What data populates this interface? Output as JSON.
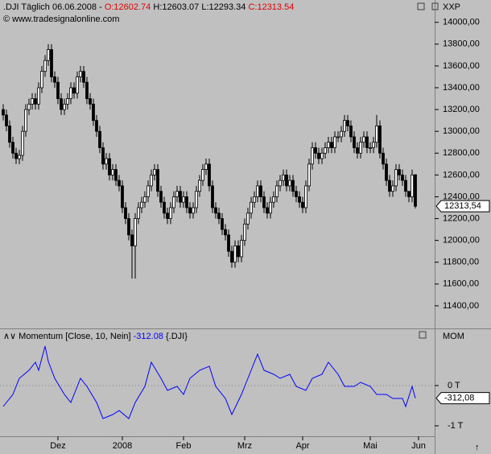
{
  "header": {
    "symbol": ".DJI",
    "period": "Täglich",
    "date": "06.06.2008",
    "dash": "-",
    "copyright": "© www.tradesignalonline.com",
    "corner": "XXP"
  },
  "chart_data": [
    {
      "type": "candlestick",
      "ohlc_labels": [
        "O:12602.74",
        "H:12603.07",
        "L:12293.34",
        "C:12313.54"
      ],
      "last_label": "12313,54",
      "xlim": [
        -1,
        134
      ],
      "xticks": [
        {
          "value": 17,
          "label": "Dez"
        },
        {
          "value": 37,
          "label": "2008"
        },
        {
          "value": 56,
          "label": "Feb"
        },
        {
          "value": 75,
          "label": "Mrz"
        },
        {
          "value": 93,
          "label": "Apr"
        },
        {
          "value": 114,
          "label": "Mai"
        },
        {
          "value": 129,
          "label": "Jun"
        }
      ],
      "ylim": [
        11200,
        14190
      ],
      "yticks": [
        {
          "value": 11400,
          "label": "11400,00"
        },
        {
          "value": 11600,
          "label": "11600,00"
        },
        {
          "value": 11800,
          "label": "11800,00"
        },
        {
          "value": 12000,
          "label": "12000,00"
        },
        {
          "value": 12200,
          "label": "12200,00"
        },
        {
          "value": 12400,
          "label": "12400,00"
        },
        {
          "value": 12600,
          "label": "12600,00"
        },
        {
          "value": 12800,
          "label": "12800,00"
        },
        {
          "value": 13000,
          "label": "13000,00"
        },
        {
          "value": 13200,
          "label": "13200,00"
        },
        {
          "value": 13400,
          "label": "13400,00"
        },
        {
          "value": 13600,
          "label": "13600,00"
        },
        {
          "value": 13800,
          "label": "13800,00"
        },
        {
          "value": 14000,
          "label": "14000,00"
        }
      ],
      "up_color": "#ffffff",
      "down_color": "#000000",
      "open": [
        13200,
        13150,
        13050,
        12900,
        12800,
        12750,
        12780,
        13000,
        13200,
        13250,
        13300,
        13250,
        13400,
        13550,
        13650,
        13750,
        13500,
        13450,
        13300,
        13200,
        13250,
        13300,
        13400,
        13350,
        13500,
        13550,
        13450,
        13300,
        13250,
        13100,
        13000,
        12850,
        12700,
        12750,
        12600,
        12650,
        12550,
        12500,
        12300,
        12200,
        12050,
        11950,
        12200,
        12300,
        12350,
        12400,
        12500,
        12600,
        12650,
        12450,
        12350,
        12250,
        12200,
        12300,
        12400,
        12450,
        12350,
        12400,
        12300,
        12250,
        12300,
        12450,
        12550,
        12650,
        12700,
        12500,
        12300,
        12250,
        12200,
        12100,
        12050,
        11900,
        11800,
        11950,
        11850,
        12000,
        12150,
        12250,
        12350,
        12400,
        12500,
        12400,
        12300,
        12250,
        12350,
        12400,
        12500,
        12550,
        12600,
        12500,
        12550,
        12450,
        12400,
        12350,
        12300,
        12500,
        12700,
        12850,
        12800,
        12750,
        12800,
        12850,
        12900,
        12850,
        12950,
        12950,
        13000,
        13100,
        13050,
        12950,
        12850,
        12800,
        12900,
        12950,
        12850,
        12850,
        12900,
        13050,
        12800,
        12700,
        12550,
        12450,
        12500,
        12650,
        12600,
        12550,
        12450,
        12400,
        12602.74
      ],
      "high": [
        13250,
        13200,
        13100,
        12950,
        12850,
        12830,
        13050,
        13250,
        13300,
        13350,
        13350,
        13450,
        13600,
        13700,
        13800,
        13800,
        13550,
        13500,
        13350,
        13300,
        13350,
        13450,
        13450,
        13550,
        13600,
        13600,
        13500,
        13350,
        13300,
        13150,
        13050,
        12900,
        12800,
        12800,
        12700,
        12700,
        12600,
        12550,
        12350,
        12250,
        12100,
        12250,
        12350,
        12400,
        12450,
        12550,
        12650,
        12700,
        12700,
        12500,
        12400,
        12300,
        12350,
        12450,
        12500,
        12500,
        12450,
        12450,
        12350,
        12350,
        12500,
        12600,
        12700,
        12750,
        12750,
        12550,
        12350,
        12300,
        12250,
        12150,
        12100,
        11950,
        12000,
        12000,
        12050,
        12200,
        12300,
        12400,
        12450,
        12550,
        12550,
        12450,
        12350,
        12400,
        12450,
        12550,
        12600,
        12650,
        12650,
        12600,
        12600,
        12500,
        12450,
        12400,
        12550,
        12750,
        12900,
        12900,
        12850,
        12850,
        12900,
        12950,
        12950,
        13000,
        13000,
        13050,
        13150,
        13150,
        13100,
        13000,
        12900,
        12950,
        13000,
        13000,
        12900,
        12950,
        13150,
        13100,
        12850,
        12750,
        12600,
        12550,
        12700,
        12700,
        12650,
        12600,
        12450,
        12650,
        12603.07
      ],
      "low": [
        13100,
        13000,
        12850,
        12750,
        12700,
        12700,
        12730,
        12950,
        13150,
        13200,
        13200,
        13200,
        13350,
        13500,
        13600,
        13450,
        13400,
        13250,
        13150,
        13150,
        13200,
        13250,
        13300,
        13300,
        13450,
        13400,
        13250,
        13200,
        13050,
        12950,
        12800,
        12650,
        12650,
        12550,
        12550,
        12500,
        12450,
        12250,
        12150,
        12000,
        11650,
        11650,
        12150,
        12250,
        12300,
        12350,
        12450,
        12550,
        12400,
        12300,
        12200,
        12150,
        12150,
        12250,
        12350,
        12300,
        12300,
        12250,
        12200,
        12200,
        12250,
        12400,
        12500,
        12600,
        12450,
        12250,
        12200,
        12150,
        12050,
        12000,
        11850,
        11750,
        11750,
        11800,
        11800,
        11950,
        12100,
        12200,
        12300,
        12350,
        12350,
        12250,
        12200,
        12200,
        12300,
        12350,
        12450,
        12500,
        12450,
        12450,
        12400,
        12350,
        12300,
        12250,
        12250,
        12450,
        12650,
        12750,
        12700,
        12700,
        12750,
        12800,
        12800,
        12800,
        12900,
        12900,
        12950,
        13000,
        12900,
        12800,
        12750,
        12750,
        12850,
        12800,
        12800,
        12800,
        12850,
        12750,
        12650,
        12500,
        12400,
        12400,
        12450,
        12550,
        12500,
        12400,
        12350,
        12350,
        12293.34
      ],
      "close": [
        13150,
        13050,
        12900,
        12800,
        12750,
        12780,
        13000,
        13200,
        13250,
        13300,
        13250,
        13400,
        13550,
        13650,
        13750,
        13500,
        13450,
        13300,
        13200,
        13250,
        13300,
        13400,
        13350,
        13500,
        13550,
        13450,
        13300,
        13250,
        13100,
        13000,
        12850,
        12700,
        12750,
        12600,
        12650,
        12550,
        12500,
        12300,
        12200,
        12050,
        11950,
        12200,
        12300,
        12350,
        12400,
        12500,
        12600,
        12650,
        12450,
        12350,
        12250,
        12200,
        12300,
        12400,
        12450,
        12350,
        12400,
        12300,
        12250,
        12300,
        12450,
        12550,
        12650,
        12700,
        12500,
        12300,
        12250,
        12200,
        12100,
        12050,
        11900,
        11800,
        11950,
        11850,
        12000,
        12150,
        12250,
        12350,
        12400,
        12500,
        12400,
        12300,
        12250,
        12350,
        12400,
        12500,
        12550,
        12600,
        12500,
        12550,
        12450,
        12400,
        12350,
        12300,
        12500,
        12700,
        12850,
        12800,
        12750,
        12800,
        12850,
        12900,
        12850,
        12950,
        12950,
        13000,
        13100,
        13050,
        12950,
        12850,
        12800,
        12900,
        12950,
        12850,
        12850,
        12900,
        13050,
        12800,
        12700,
        12550,
        12450,
        12500,
        12650,
        12600,
        12550,
        12450,
        12400,
        12600,
        12313.54
      ]
    },
    {
      "type": "line",
      "title": "Momentum [Close, 10, Nein]",
      "value_label": "-312.08",
      "source": "{.DJI}",
      "corner": "MOM",
      "last_label": "-312,08",
      "xlim": [
        -1,
        134
      ],
      "ylim": [
        -1260,
        1380
      ],
      "yticks": [
        {
          "value": 0,
          "label": "0 T"
        },
        {
          "value": -1000,
          "label": "-1 T"
        }
      ],
      "series": [
        {
          "name": "Momentum",
          "color": "#0000ff",
          "x": [
            0,
            3,
            5,
            8,
            10,
            11,
            13,
            14,
            16,
            19,
            21,
            24,
            26,
            29,
            31,
            34,
            36,
            39,
            41,
            44,
            46,
            49,
            51,
            54,
            56,
            58,
            61,
            64,
            66,
            69,
            71,
            74,
            76,
            79,
            81,
            84,
            86,
            89,
            91,
            94,
            96,
            99,
            101,
            104,
            106,
            109,
            111,
            114,
            116,
            119,
            121,
            124,
            125,
            127,
            128
          ],
          "values": [
            -520,
            -220,
            180,
            380,
            580,
            380,
            980,
            600,
            180,
            -220,
            -420,
            180,
            -20,
            -420,
            -820,
            -720,
            -620,
            -820,
            -420,
            -20,
            580,
            180,
            -120,
            -20,
            -220,
            180,
            380,
            480,
            -20,
            -320,
            -720,
            -220,
            180,
            780,
            380,
            280,
            180,
            280,
            -20,
            -120,
            180,
            280,
            580,
            280,
            -20,
            -20,
            80,
            -20,
            -220,
            -220,
            -320,
            -320,
            -520,
            -20,
            -312.08
          ]
        }
      ]
    }
  ]
}
